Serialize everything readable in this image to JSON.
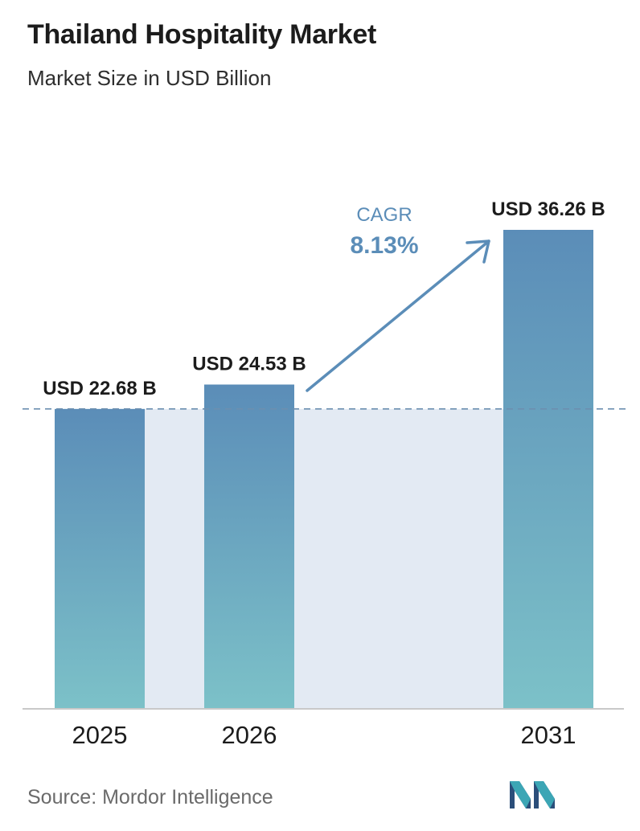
{
  "header": {
    "title": "Thailand Hospitality Market",
    "subtitle": "Market Size in USD Billion"
  },
  "chart_data": {
    "type": "bar",
    "categories": [
      "2025",
      "2026",
      "2031"
    ],
    "values": [
      22.68,
      24.53,
      36.26
    ],
    "value_labels": [
      "USD 22.68 B",
      "USD 24.53 B",
      "USD 36.26 B"
    ],
    "ylim": [
      0,
      36.26
    ],
    "grid": false,
    "annotation": {
      "label": "CAGR",
      "value": "8.13%"
    },
    "colors": {
      "bar_top": "#5b8db8",
      "bar_bottom": "#7cc1c8",
      "band": "#e3eaf3",
      "arrow": "#5b8db8",
      "cagr_label": "#5b8db8"
    }
  },
  "footer": {
    "source": "Source:  Mordor Intelligence",
    "logo_icon": "mordor-intelligence-logo-icon"
  }
}
